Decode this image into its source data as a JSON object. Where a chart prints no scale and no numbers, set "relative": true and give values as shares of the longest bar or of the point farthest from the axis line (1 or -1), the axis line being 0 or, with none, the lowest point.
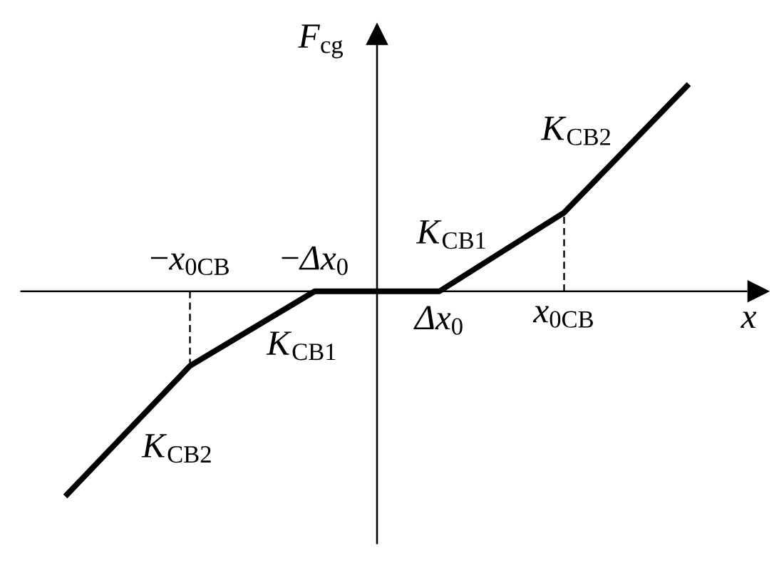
{
  "chart_data": {
    "type": "line",
    "relative": true,
    "xlabel": "*x*",
    "ylabel": "*F*$_{cg}$",
    "categories": [
      null,
      "−*x*$_{0CB}$",
      "−*Δx*$_{0}$",
      "*Δx*$_{0}$",
      "*x*$_{0CB}$",
      null
    ],
    "series": [
      {
        "color": "#000000",
        "values": [
          -0.99,
          -0.36,
          0,
          0,
          0.38,
          1
        ]
      },
      {
        "color": "#000000",
        "line_style": "dashed",
        "x": [
          "−*x*$_{0CB}$",
          "−*x*$_{0CB}$"
        ],
        "values": [
          0,
          -0.36
        ]
      },
      {
        "color": "#000000",
        "line_style": "dashed",
        "x": [
          "*x*$_{0CB}$",
          "*x*$_{0CB}$"
        ],
        "values": [
          0,
          0.38
        ]
      }
    ],
    "annotations": [
      "*K*$_{CB2}$",
      "*K*$_{CB1}$",
      "*K*$_{CB1}$",
      "*K*$_{CB2}$"
    ]
  }
}
